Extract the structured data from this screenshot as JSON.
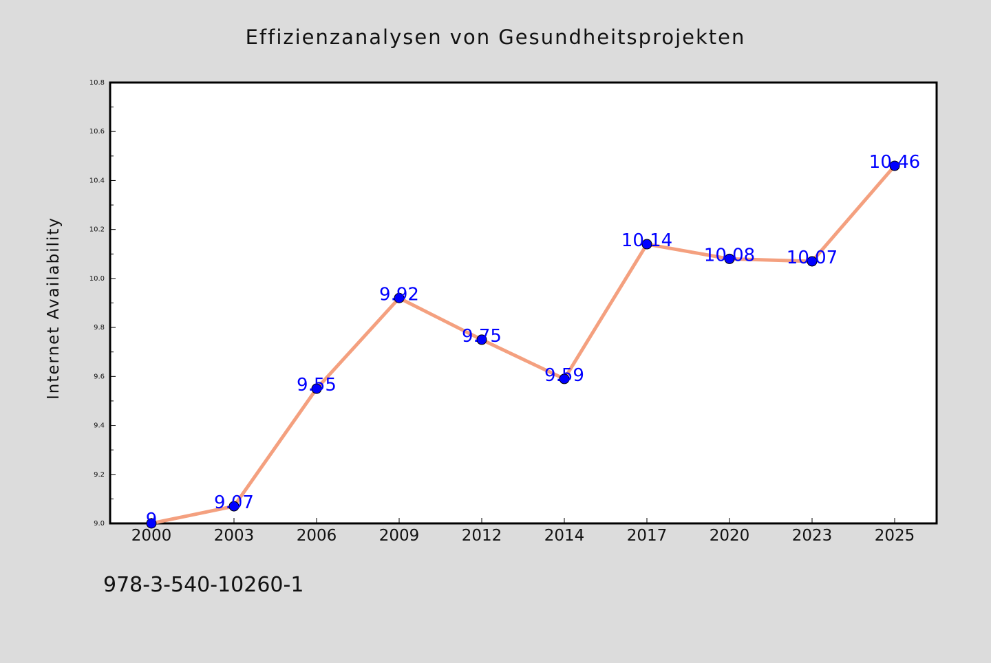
{
  "footer_text": "978-3-540-10260-1",
  "colors": {
    "background": "#dcdcdc",
    "plot_background": "#ffffff",
    "line": "#f4a07f",
    "marker": "#0000ff",
    "data_label": "#0000ff",
    "axis": "#000000"
  },
  "chart_data": {
    "type": "line",
    "title": "Effizienzanalysen von Gesundheitsprojekten",
    "xlabel": "",
    "ylabel": "Internet Availability",
    "categories": [
      "2000",
      "2003",
      "2006",
      "2009",
      "2012",
      "2014",
      "2017",
      "2020",
      "2023",
      "2025"
    ],
    "series": [
      {
        "values": [
          9,
          9.07,
          9.55,
          9.92,
          9.75,
          9.59,
          10.14,
          10.08,
          10.07,
          10.46
        ],
        "labels": [
          "9",
          "9.07",
          "9.55",
          "9.92",
          "9.75",
          "9.59",
          "10.14",
          "10.08",
          "10.07",
          "10.46"
        ]
      }
    ],
    "ylim": [
      9.0,
      10.8
    ],
    "yticks": [
      "9.0",
      "9.2",
      "9.4",
      "9.6",
      "9.8",
      "10.0",
      "10.2",
      "10.4",
      "10.6",
      "10.8"
    ],
    "grid": false,
    "legend": false
  }
}
